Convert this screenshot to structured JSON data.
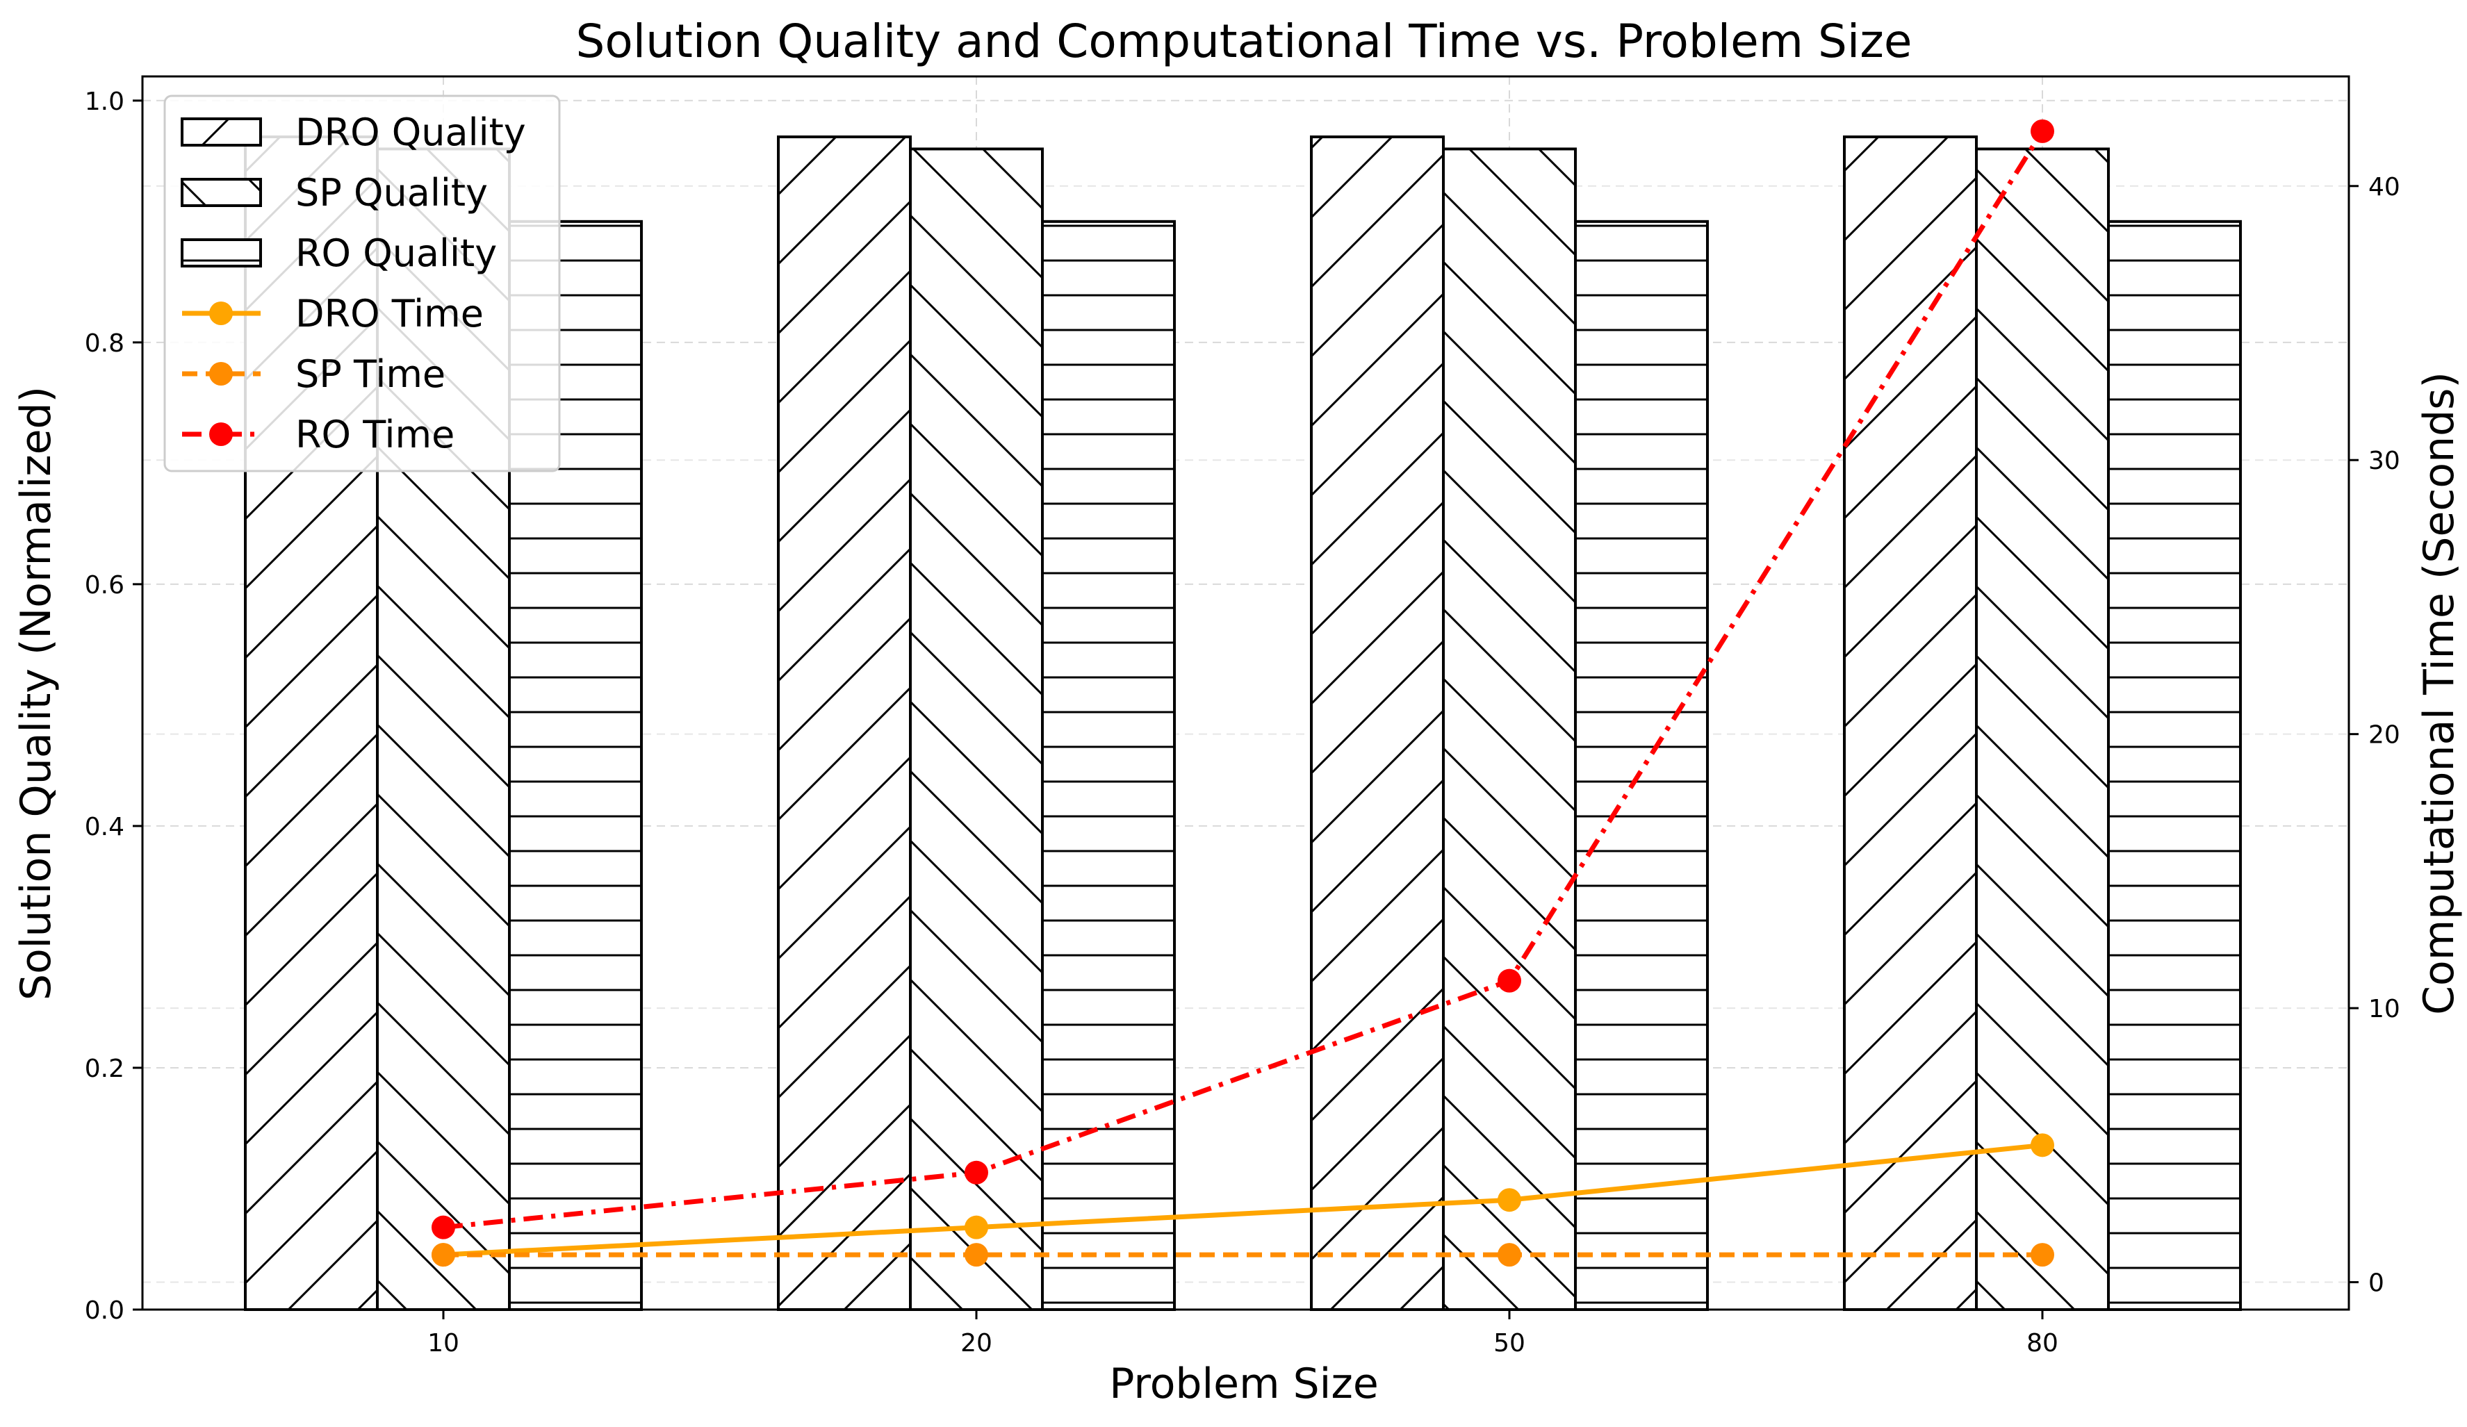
{
  "chart_data": {
    "type": "bar",
    "title": "Solution Quality and Computational Time vs. Problem Size",
    "xlabel": "Problem Size",
    "ylabel": "Solution Quality (Normalized)",
    "y2label": "Computational Time (Seconds)",
    "categories": [
      "10",
      "20",
      "50",
      "80"
    ],
    "ylim": [
      0,
      1.02
    ],
    "y2lim": [
      -1,
      44
    ],
    "yticks": [
      "0.0",
      "0.2",
      "0.4",
      "0.6",
      "0.8",
      "1.0"
    ],
    "y2ticks": [
      "0",
      "10",
      "20",
      "30",
      "40"
    ],
    "grid": true,
    "legend_position": "top-left",
    "bar_series": [
      {
        "name": "DRO Quality",
        "values": [
          0.97,
          0.97,
          0.97,
          0.97
        ],
        "hatch": "/"
      },
      {
        "name": "SP Quality",
        "values": [
          0.96,
          0.96,
          0.96,
          0.96
        ],
        "hatch": "\\"
      },
      {
        "name": "RO Quality",
        "values": [
          0.9,
          0.9,
          0.9,
          0.9
        ],
        "hatch": "-"
      }
    ],
    "line_series": [
      {
        "name": "DRO Time",
        "values": [
          1,
          2,
          3,
          5
        ],
        "color": "#ffa500",
        "style": "solid"
      },
      {
        "name": "SP Time",
        "values": [
          1,
          1,
          1,
          1
        ],
        "color": "#ff8c00",
        "style": "dashed"
      },
      {
        "name": "RO Time",
        "values": [
          2,
          4,
          11,
          42
        ],
        "color": "#ff0000",
        "style": "dashdot"
      }
    ]
  }
}
